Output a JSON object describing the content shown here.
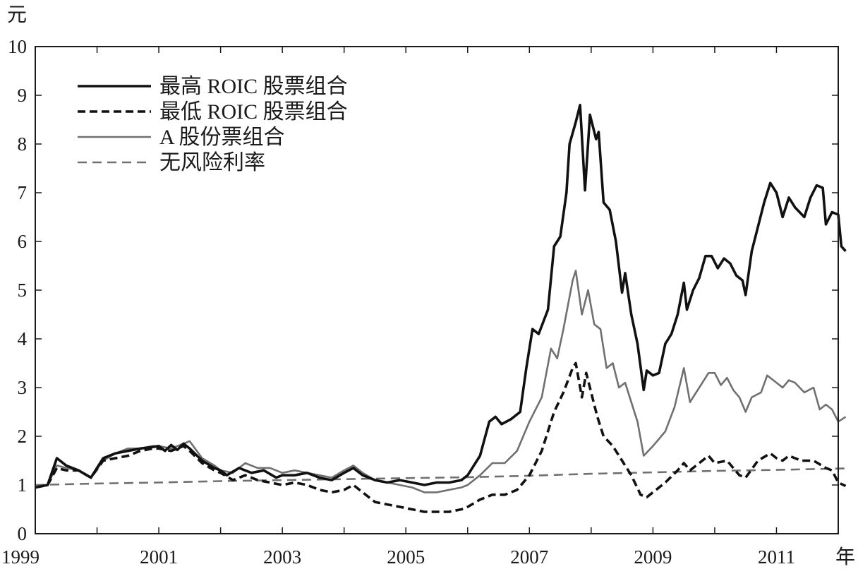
{
  "chart_data": {
    "type": "line",
    "title": "",
    "xlabel": "年",
    "ylabel": "元",
    "xlim": [
      1999,
      2012
    ],
    "ylim": [
      0,
      10
    ],
    "x_ticks": [
      {
        "value": 1999,
        "label": "1999"
      },
      {
        "value": 2001,
        "label": "2001"
      },
      {
        "value": 2003,
        "label": "2003"
      },
      {
        "value": 2005,
        "label": "2005"
      },
      {
        "value": 2007,
        "label": "2007"
      },
      {
        "value": 2009,
        "label": "2009"
      },
      {
        "value": 2011,
        "label": "2011"
      }
    ],
    "y_ticks": [
      {
        "value": 0,
        "label": "0"
      },
      {
        "value": 1,
        "label": "1"
      },
      {
        "value": 2,
        "label": "2"
      },
      {
        "value": 3,
        "label": "3"
      },
      {
        "value": 4,
        "label": "4"
      },
      {
        "value": 5,
        "label": "5"
      },
      {
        "value": 6,
        "label": "6"
      },
      {
        "value": 7,
        "label": "7"
      },
      {
        "value": 8,
        "label": "8"
      },
      {
        "value": 9,
        "label": "9"
      },
      {
        "value": 10,
        "label": "10"
      }
    ],
    "grid": false,
    "legend": "top-left",
    "series": [
      {
        "name": "最高 ROIC 股票组合",
        "color": "#111111",
        "style": "solid-thick",
        "points": [
          [
            1999.0,
            0.95
          ],
          [
            1999.2,
            1.0
          ],
          [
            1999.35,
            1.55
          ],
          [
            1999.5,
            1.4
          ],
          [
            1999.7,
            1.3
          ],
          [
            1999.9,
            1.15
          ],
          [
            2000.1,
            1.55
          ],
          [
            2000.3,
            1.65
          ],
          [
            2000.5,
            1.7
          ],
          [
            2000.7,
            1.75
          ],
          [
            2000.9,
            1.78
          ],
          [
            2001.0,
            1.8
          ],
          [
            2001.1,
            1.7
          ],
          [
            2001.2,
            1.82
          ],
          [
            2001.3,
            1.72
          ],
          [
            2001.4,
            1.85
          ],
          [
            2001.5,
            1.75
          ],
          [
            2001.7,
            1.5
          ],
          [
            2001.9,
            1.35
          ],
          [
            2002.0,
            1.3
          ],
          [
            2002.1,
            1.2
          ],
          [
            2002.3,
            1.35
          ],
          [
            2002.5,
            1.25
          ],
          [
            2002.7,
            1.3
          ],
          [
            2002.9,
            1.15
          ],
          [
            2003.0,
            1.2
          ],
          [
            2003.2,
            1.2
          ],
          [
            2003.4,
            1.25
          ],
          [
            2003.6,
            1.15
          ],
          [
            2003.8,
            1.1
          ],
          [
            2004.0,
            1.25
          ],
          [
            2004.15,
            1.35
          ],
          [
            2004.3,
            1.2
          ],
          [
            2004.5,
            1.1
          ],
          [
            2004.7,
            1.05
          ],
          [
            2004.9,
            1.1
          ],
          [
            2005.1,
            1.05
          ],
          [
            2005.3,
            1.0
          ],
          [
            2005.5,
            1.05
          ],
          [
            2005.7,
            1.05
          ],
          [
            2005.9,
            1.1
          ],
          [
            2006.0,
            1.2
          ],
          [
            2006.2,
            1.6
          ],
          [
            2006.35,
            2.3
          ],
          [
            2006.45,
            2.4
          ],
          [
            2006.55,
            2.25
          ],
          [
            2006.7,
            2.35
          ],
          [
            2006.85,
            2.5
          ],
          [
            2006.95,
            3.4
          ],
          [
            2007.05,
            4.2
          ],
          [
            2007.15,
            4.1
          ],
          [
            2007.3,
            4.6
          ],
          [
            2007.4,
            5.9
          ],
          [
            2007.5,
            6.1
          ],
          [
            2007.6,
            7.0
          ],
          [
            2007.65,
            8.0
          ],
          [
            2007.75,
            8.45
          ],
          [
            2007.82,
            8.8
          ],
          [
            2007.9,
            7.05
          ],
          [
            2007.98,
            8.6
          ],
          [
            2008.08,
            8.1
          ],
          [
            2008.12,
            8.25
          ],
          [
            2008.2,
            6.8
          ],
          [
            2008.3,
            6.65
          ],
          [
            2008.4,
            6.0
          ],
          [
            2008.5,
            4.95
          ],
          [
            2008.55,
            5.35
          ],
          [
            2008.65,
            4.5
          ],
          [
            2008.75,
            3.9
          ],
          [
            2008.85,
            2.95
          ],
          [
            2008.9,
            3.35
          ],
          [
            2009.0,
            3.25
          ],
          [
            2009.1,
            3.3
          ],
          [
            2009.2,
            3.9
          ],
          [
            2009.3,
            4.1
          ],
          [
            2009.4,
            4.5
          ],
          [
            2009.5,
            5.15
          ],
          [
            2009.55,
            4.6
          ],
          [
            2009.65,
            5.0
          ],
          [
            2009.75,
            5.25
          ],
          [
            2009.85,
            5.7
          ],
          [
            2009.95,
            5.7
          ],
          [
            2010.05,
            5.45
          ],
          [
            2010.15,
            5.65
          ],
          [
            2010.25,
            5.55
          ],
          [
            2010.35,
            5.3
          ],
          [
            2010.45,
            5.2
          ],
          [
            2010.5,
            4.9
          ],
          [
            2010.6,
            5.8
          ],
          [
            2010.7,
            6.3
          ],
          [
            2010.8,
            6.8
          ],
          [
            2010.9,
            7.2
          ],
          [
            2011.0,
            7.0
          ],
          [
            2011.1,
            6.5
          ],
          [
            2011.2,
            6.9
          ],
          [
            2011.3,
            6.7
          ],
          [
            2011.45,
            6.5
          ],
          [
            2011.55,
            6.9
          ],
          [
            2011.65,
            7.15
          ],
          [
            2011.75,
            7.1
          ],
          [
            2011.8,
            6.35
          ],
          [
            2011.9,
            6.6
          ],
          [
            2012.0,
            6.55
          ],
          [
            2012.05,
            5.9
          ],
          [
            2012.12,
            5.8
          ]
        ]
      },
      {
        "name": "最低 ROIC 股票组合",
        "color": "#111111",
        "style": "dashed-thick",
        "points": [
          [
            1999.0,
            0.95
          ],
          [
            1999.2,
            1.0
          ],
          [
            1999.35,
            1.35
          ],
          [
            1999.5,
            1.3
          ],
          [
            1999.7,
            1.3
          ],
          [
            1999.9,
            1.15
          ],
          [
            2000.1,
            1.5
          ],
          [
            2000.3,
            1.55
          ],
          [
            2000.5,
            1.6
          ],
          [
            2000.7,
            1.7
          ],
          [
            2000.9,
            1.75
          ],
          [
            2001.0,
            1.75
          ],
          [
            2001.2,
            1.7
          ],
          [
            2001.4,
            1.8
          ],
          [
            2001.5,
            1.7
          ],
          [
            2001.7,
            1.45
          ],
          [
            2001.9,
            1.3
          ],
          [
            2002.0,
            1.25
          ],
          [
            2002.2,
            1.1
          ],
          [
            2002.4,
            1.2
          ],
          [
            2002.6,
            1.1
          ],
          [
            2002.8,
            1.05
          ],
          [
            2003.0,
            1.0
          ],
          [
            2003.2,
            1.05
          ],
          [
            2003.4,
            1.0
          ],
          [
            2003.6,
            0.9
          ],
          [
            2003.8,
            0.85
          ],
          [
            2004.0,
            0.9
          ],
          [
            2004.15,
            1.0
          ],
          [
            2004.3,
            0.85
          ],
          [
            2004.5,
            0.65
          ],
          [
            2004.7,
            0.6
          ],
          [
            2004.9,
            0.55
          ],
          [
            2005.1,
            0.5
          ],
          [
            2005.3,
            0.45
          ],
          [
            2005.5,
            0.45
          ],
          [
            2005.7,
            0.45
          ],
          [
            2005.9,
            0.5
          ],
          [
            2006.0,
            0.55
          ],
          [
            2006.2,
            0.7
          ],
          [
            2006.4,
            0.8
          ],
          [
            2006.6,
            0.8
          ],
          [
            2006.8,
            0.9
          ],
          [
            2007.0,
            1.2
          ],
          [
            2007.2,
            1.7
          ],
          [
            2007.4,
            2.5
          ],
          [
            2007.55,
            2.9
          ],
          [
            2007.7,
            3.4
          ],
          [
            2007.75,
            3.5
          ],
          [
            2007.85,
            2.8
          ],
          [
            2007.92,
            3.3
          ],
          [
            2008.0,
            2.9
          ],
          [
            2008.1,
            2.4
          ],
          [
            2008.2,
            2.0
          ],
          [
            2008.35,
            1.8
          ],
          [
            2008.5,
            1.5
          ],
          [
            2008.65,
            1.2
          ],
          [
            2008.8,
            0.8
          ],
          [
            2008.9,
            0.75
          ],
          [
            2009.0,
            0.85
          ],
          [
            2009.2,
            1.05
          ],
          [
            2009.4,
            1.3
          ],
          [
            2009.5,
            1.45
          ],
          [
            2009.6,
            1.3
          ],
          [
            2009.8,
            1.5
          ],
          [
            2009.9,
            1.6
          ],
          [
            2010.0,
            1.45
          ],
          [
            2010.2,
            1.5
          ],
          [
            2010.4,
            1.2
          ],
          [
            2010.5,
            1.15
          ],
          [
            2010.7,
            1.5
          ],
          [
            2010.9,
            1.65
          ],
          [
            2011.0,
            1.55
          ],
          [
            2011.1,
            1.5
          ],
          [
            2011.2,
            1.6
          ],
          [
            2011.4,
            1.5
          ],
          [
            2011.6,
            1.5
          ],
          [
            2011.8,
            1.35
          ],
          [
            2011.9,
            1.3
          ],
          [
            2012.0,
            1.05
          ],
          [
            2012.12,
            0.98
          ]
        ]
      },
      {
        "name": "A 股份票组合",
        "color": "#707070",
        "style": "solid-thin",
        "points": [
          [
            1999.0,
            0.95
          ],
          [
            1999.2,
            1.0
          ],
          [
            1999.35,
            1.4
          ],
          [
            1999.5,
            1.35
          ],
          [
            1999.7,
            1.3
          ],
          [
            1999.9,
            1.15
          ],
          [
            2000.1,
            1.5
          ],
          [
            2000.3,
            1.65
          ],
          [
            2000.5,
            1.75
          ],
          [
            2000.7,
            1.75
          ],
          [
            2000.9,
            1.8
          ],
          [
            2001.0,
            1.8
          ],
          [
            2001.2,
            1.75
          ],
          [
            2001.4,
            1.85
          ],
          [
            2001.5,
            1.9
          ],
          [
            2001.7,
            1.55
          ],
          [
            2001.9,
            1.4
          ],
          [
            2002.0,
            1.3
          ],
          [
            2002.2,
            1.25
          ],
          [
            2002.4,
            1.45
          ],
          [
            2002.6,
            1.35
          ],
          [
            2002.8,
            1.35
          ],
          [
            2003.0,
            1.25
          ],
          [
            2003.2,
            1.3
          ],
          [
            2003.4,
            1.25
          ],
          [
            2003.6,
            1.2
          ],
          [
            2003.8,
            1.15
          ],
          [
            2004.0,
            1.3
          ],
          [
            2004.15,
            1.4
          ],
          [
            2004.3,
            1.25
          ],
          [
            2004.5,
            1.1
          ],
          [
            2004.7,
            1.05
          ],
          [
            2004.9,
            1.0
          ],
          [
            2005.1,
            0.95
          ],
          [
            2005.3,
            0.85
          ],
          [
            2005.5,
            0.85
          ],
          [
            2005.7,
            0.9
          ],
          [
            2005.9,
            0.95
          ],
          [
            2006.0,
            1.0
          ],
          [
            2006.2,
            1.2
          ],
          [
            2006.4,
            1.45
          ],
          [
            2006.6,
            1.45
          ],
          [
            2006.8,
            1.7
          ],
          [
            2007.0,
            2.3
          ],
          [
            2007.2,
            2.8
          ],
          [
            2007.35,
            3.8
          ],
          [
            2007.45,
            3.6
          ],
          [
            2007.55,
            4.2
          ],
          [
            2007.7,
            5.2
          ],
          [
            2007.75,
            5.4
          ],
          [
            2007.85,
            4.5
          ],
          [
            2007.95,
            5.0
          ],
          [
            2008.05,
            4.3
          ],
          [
            2008.15,
            4.2
          ],
          [
            2008.25,
            3.4
          ],
          [
            2008.35,
            3.5
          ],
          [
            2008.45,
            3.0
          ],
          [
            2008.55,
            3.1
          ],
          [
            2008.65,
            2.7
          ],
          [
            2008.75,
            2.3
          ],
          [
            2008.85,
            1.6
          ],
          [
            2009.0,
            1.8
          ],
          [
            2009.2,
            2.1
          ],
          [
            2009.35,
            2.6
          ],
          [
            2009.5,
            3.4
          ],
          [
            2009.6,
            2.7
          ],
          [
            2009.75,
            3.0
          ],
          [
            2009.9,
            3.3
          ],
          [
            2010.0,
            3.3
          ],
          [
            2010.1,
            3.05
          ],
          [
            2010.2,
            3.2
          ],
          [
            2010.3,
            2.95
          ],
          [
            2010.4,
            2.8
          ],
          [
            2010.5,
            2.5
          ],
          [
            2010.6,
            2.8
          ],
          [
            2010.75,
            2.9
          ],
          [
            2010.85,
            3.25
          ],
          [
            2011.0,
            3.1
          ],
          [
            2011.1,
            3.0
          ],
          [
            2011.2,
            3.15
          ],
          [
            2011.3,
            3.1
          ],
          [
            2011.45,
            2.9
          ],
          [
            2011.6,
            3.0
          ],
          [
            2011.7,
            2.55
          ],
          [
            2011.8,
            2.65
          ],
          [
            2011.9,
            2.55
          ],
          [
            2012.0,
            2.3
          ],
          [
            2012.12,
            2.4
          ]
        ]
      },
      {
        "name": "无风险利率",
        "color": "#707070",
        "style": "dashed-thin",
        "points": [
          [
            1999.0,
            1.0
          ],
          [
            2000.0,
            1.03
          ],
          [
            2001.0,
            1.05
          ],
          [
            2002.0,
            1.08
          ],
          [
            2003.0,
            1.1
          ],
          [
            2004.0,
            1.12
          ],
          [
            2005.0,
            1.14
          ],
          [
            2006.0,
            1.16
          ],
          [
            2007.0,
            1.19
          ],
          [
            2008.0,
            1.23
          ],
          [
            2009.0,
            1.26
          ],
          [
            2010.0,
            1.29
          ],
          [
            2011.0,
            1.31
          ],
          [
            2012.12,
            1.34
          ]
        ]
      }
    ]
  }
}
